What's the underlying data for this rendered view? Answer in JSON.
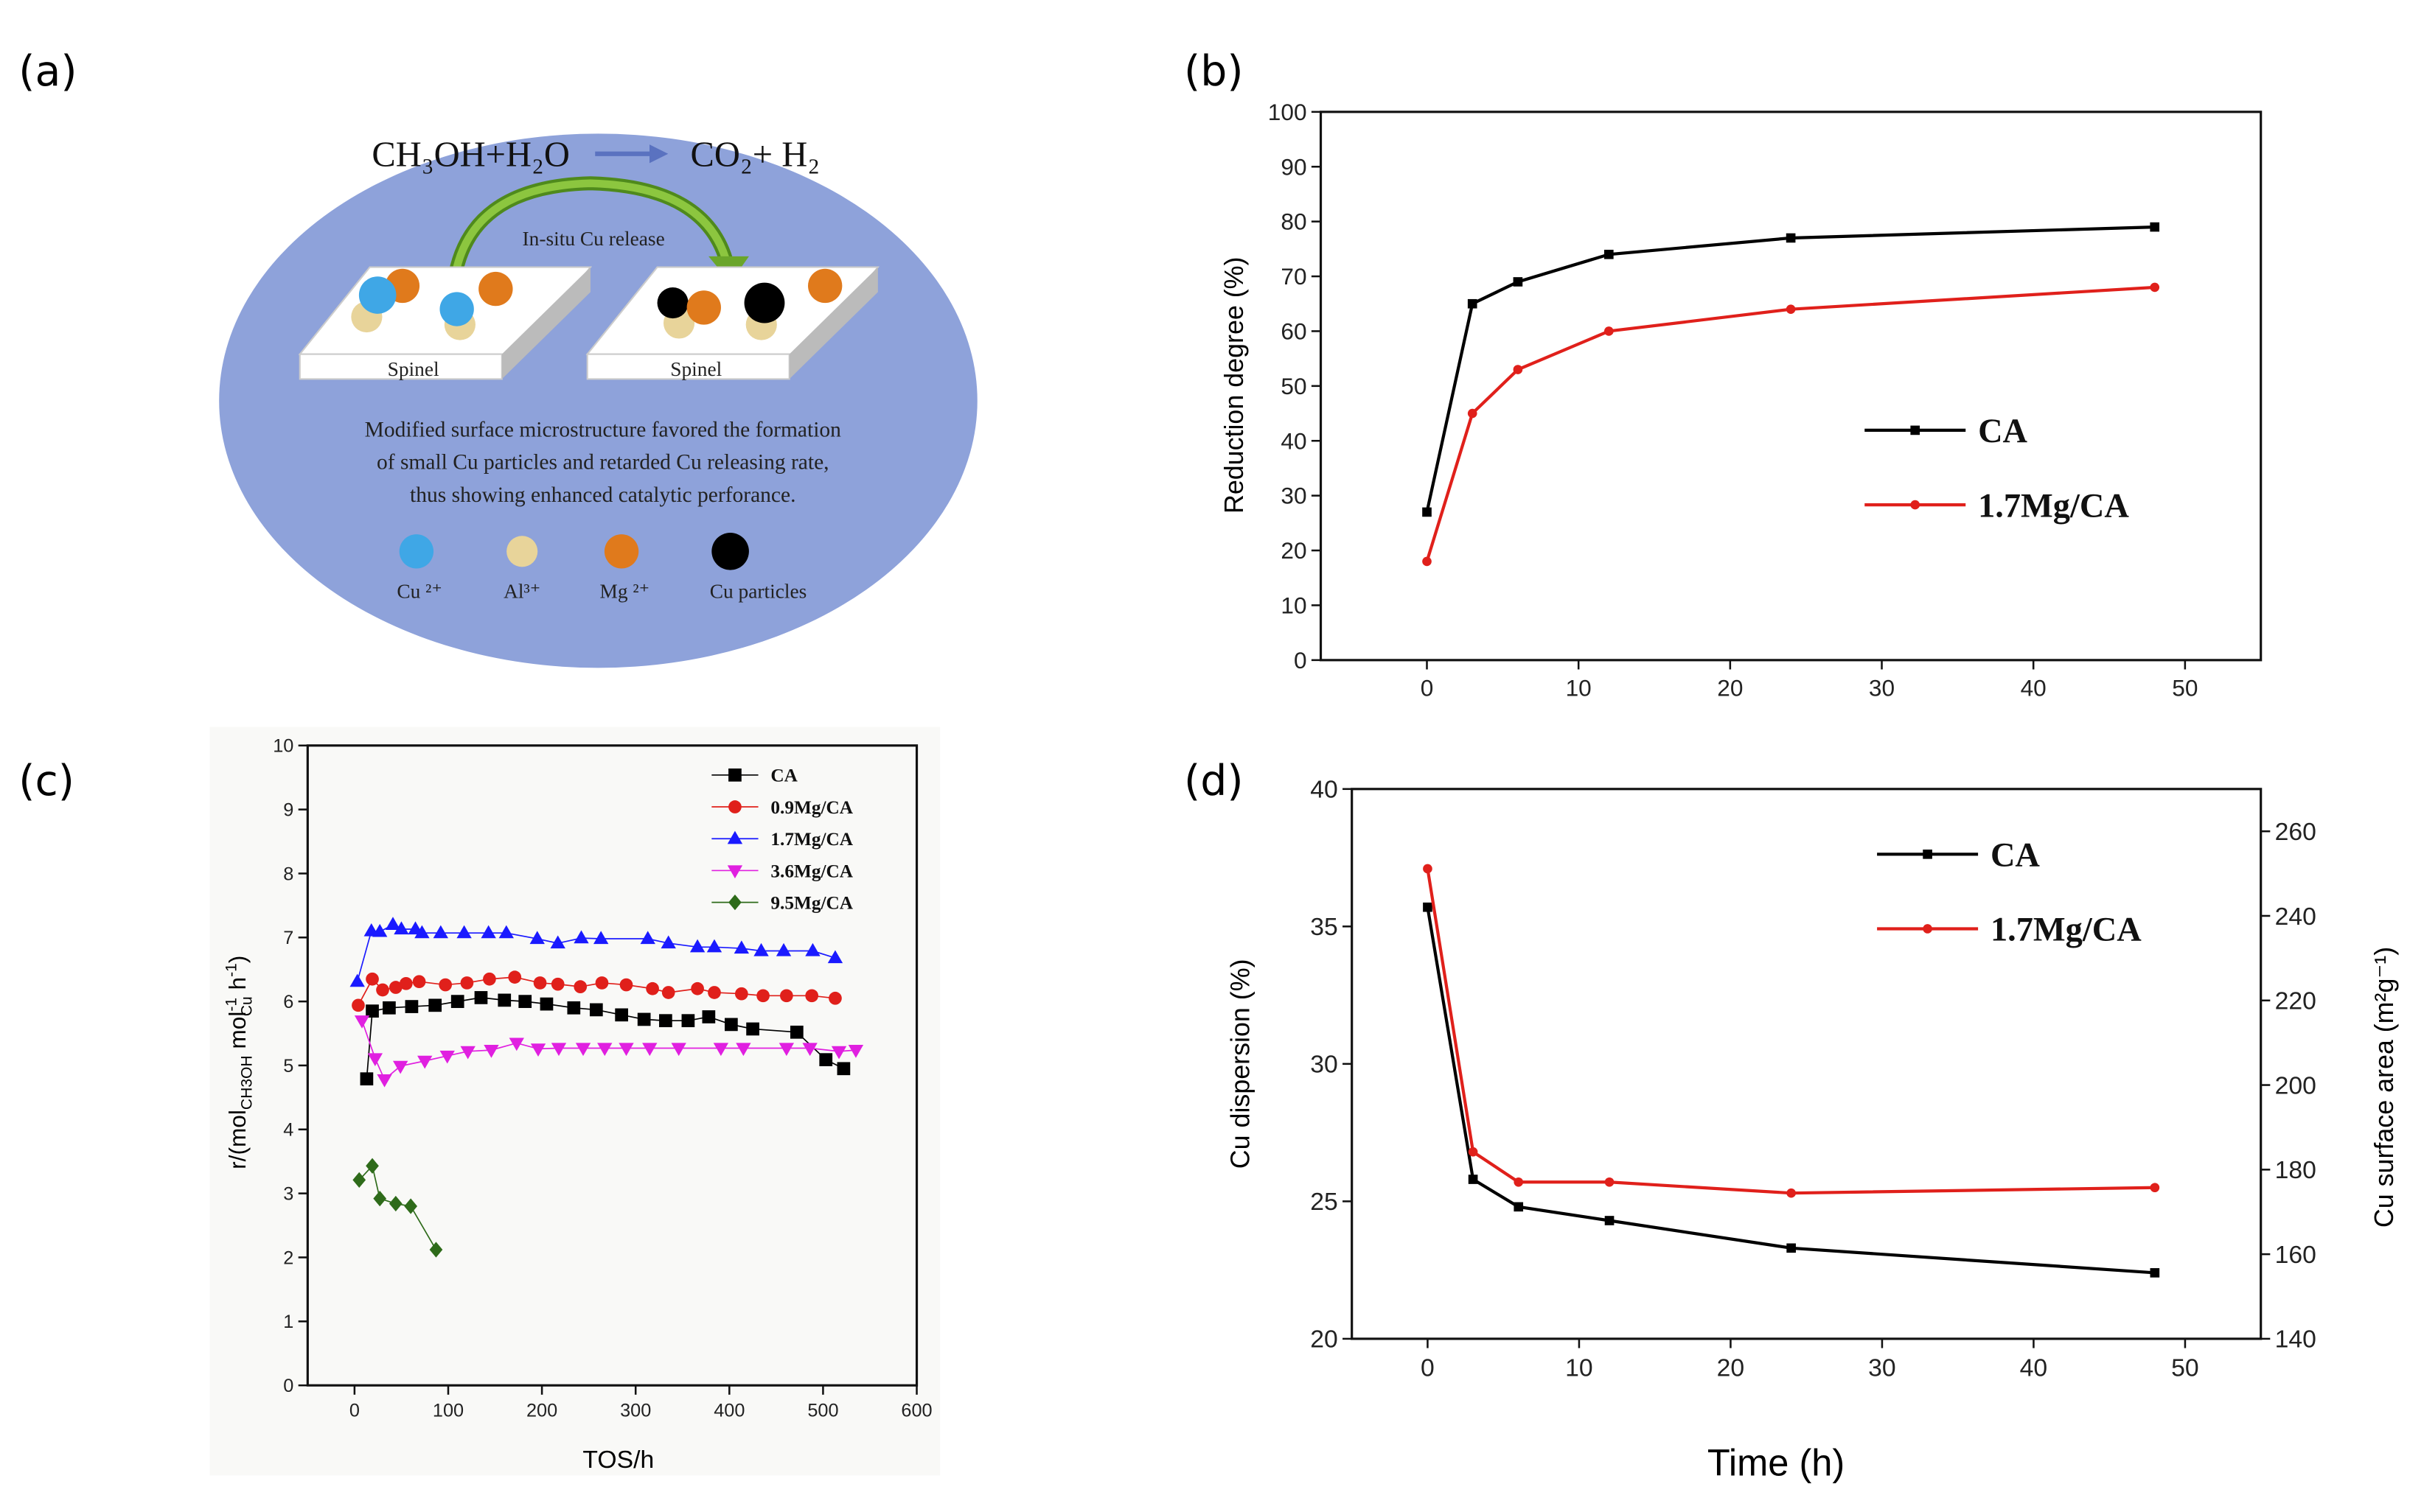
{
  "panels": {
    "a": "(a)",
    "b": "(b)",
    "c": "(c)",
    "d": "(d)"
  },
  "diagram": {
    "equation_left": "CH₃OH+H₂O",
    "equation_right": "CO₂+ H₂",
    "arrow_label": "In-situ Cu release",
    "slab_label_left": "Spinel",
    "slab_label_right": "Spinel",
    "caption": [
      "Modified surface microstructure favored the formation",
      "of small Cu particles and retarded Cu releasing rate,",
      "thus showing enhanced catalytic perforance."
    ],
    "legend": [
      "Cu ²⁺",
      "Al³⁺",
      "Mg ²⁺",
      "Cu particles"
    ],
    "colors": {
      "bg": "#8ea2da",
      "cu_ion": "#3fa7e6",
      "al_ion": "#e8d49a",
      "mg_ion": "#e07a1c",
      "cu_particle": "#000000",
      "arrow": "#6aa52a"
    }
  },
  "chart_data": [
    {
      "type": "line",
      "title": "",
      "xlabel": "",
      "ylabel": "Reduction degree (%)",
      "xlim": [
        -7,
        55
      ],
      "ylim": [
        0,
        100
      ],
      "xticks": [
        0,
        10,
        20,
        30,
        40,
        50
      ],
      "yticks": [
        0,
        10,
        20,
        30,
        40,
        50,
        60,
        70,
        80,
        90,
        100
      ],
      "legend_position": "center-right",
      "series": [
        {
          "name": "CA",
          "color": "#000000",
          "marker": "square",
          "x": [
            0,
            3,
            6,
            12,
            24,
            48
          ],
          "y": [
            27,
            65,
            69,
            74,
            77,
            79
          ]
        },
        {
          "name": "1.7Mg/CA",
          "color": "#e0201b",
          "marker": "circle",
          "x": [
            0,
            3,
            6,
            12,
            24,
            48
          ],
          "y": [
            18,
            45,
            53,
            60,
            64,
            68
          ]
        }
      ]
    },
    {
      "type": "scatter",
      "title": "",
      "xlabel": "TOS/h",
      "ylabel_parts": [
        "r/(mol",
        "CH3OH",
        " mol",
        "-1",
        "Cu",
        " h",
        "-1",
        ")"
      ],
      "xlim": [
        -50,
        600
      ],
      "ylim": [
        0,
        10
      ],
      "xticks": [
        0,
        100,
        200,
        300,
        400,
        500,
        600
      ],
      "yticks": [
        0,
        1,
        2,
        3,
        4,
        5,
        6,
        7,
        8,
        9,
        10
      ],
      "legend_position": "top-right",
      "series": [
        {
          "name": "CA",
          "color": "#000000",
          "marker": "square",
          "x": [
            13,
            19,
            37,
            61,
            86,
            110,
            135,
            160,
            182,
            205,
            234,
            258,
            285,
            309,
            332,
            356,
            378,
            402,
            425,
            472,
            503,
            522
          ],
          "y": [
            4.79,
            5.85,
            5.9,
            5.92,
            5.94,
            6.0,
            6.06,
            6.02,
            6.0,
            5.96,
            5.9,
            5.87,
            5.79,
            5.72,
            5.7,
            5.7,
            5.76,
            5.64,
            5.57,
            5.52,
            5.09,
            4.95
          ]
        },
        {
          "name": "0.9Mg/CA",
          "color": "#e0201b",
          "marker": "circle",
          "x": [
            4,
            19,
            30,
            44,
            55,
            69,
            97,
            120,
            144,
            171,
            198,
            217,
            241,
            264,
            290,
            318,
            335,
            366,
            384,
            413,
            436,
            461,
            488,
            513
          ],
          "y": [
            5.94,
            6.35,
            6.18,
            6.22,
            6.28,
            6.31,
            6.26,
            6.29,
            6.35,
            6.38,
            6.29,
            6.27,
            6.23,
            6.29,
            6.26,
            6.2,
            6.14,
            6.2,
            6.14,
            6.12,
            6.09,
            6.09,
            6.09,
            6.05
          ]
        },
        {
          "name": "1.7Mg/CA",
          "color": "#1a1aff",
          "marker": "triangle",
          "x": [
            3,
            18,
            27,
            41,
            50,
            65,
            72,
            92,
            117,
            143,
            162,
            195,
            217,
            242,
            263,
            313,
            335,
            366,
            384,
            413,
            434,
            458,
            489,
            513
          ],
          "y": [
            6.31,
            7.1,
            7.09,
            7.2,
            7.13,
            7.13,
            7.07,
            7.07,
            7.07,
            7.07,
            7.07,
            6.98,
            6.91,
            6.99,
            6.98,
            6.98,
            6.91,
            6.85,
            6.85,
            6.83,
            6.79,
            6.79,
            6.79,
            6.68
          ]
        },
        {
          "name": "3.6Mg/CA",
          "color": "#e020e0",
          "marker": "triangle-down",
          "x": [
            8,
            22,
            32,
            49,
            75,
            99,
            121,
            146,
            173,
            196,
            218,
            244,
            267,
            290,
            315,
            346,
            391,
            415,
            461,
            486,
            517,
            535
          ],
          "y": [
            5.7,
            5.11,
            4.78,
            4.99,
            5.07,
            5.15,
            5.22,
            5.24,
            5.35,
            5.26,
            5.27,
            5.27,
            5.27,
            5.27,
            5.27,
            5.27,
            5.27,
            5.27,
            5.27,
            5.27,
            5.22,
            5.24
          ]
        },
        {
          "name": "9.5Mg/CA",
          "color": "#2e6b1a",
          "marker": "diamond",
          "x": [
            5,
            19,
            27,
            44,
            60,
            87
          ],
          "y": [
            3.21,
            3.43,
            2.92,
            2.84,
            2.8,
            2.12
          ]
        }
      ]
    },
    {
      "type": "line",
      "title": "",
      "xlabel": "Time (h)",
      "ylabel": "Cu dispersion (%)",
      "ylabel_right": "Cu surface area (m²g⁻¹)",
      "xlim": [
        -5,
        55
      ],
      "ylim": [
        20,
        40
      ],
      "ylim_right": [
        140,
        270
      ],
      "xticks": [
        0,
        10,
        20,
        30,
        40,
        50
      ],
      "yticks": [
        20,
        25,
        30,
        35,
        40
      ],
      "yticks_right": [
        140,
        160,
        180,
        200,
        220,
        240,
        260
      ],
      "legend_position": "top-right",
      "series": [
        {
          "name": "CA",
          "color": "#000000",
          "marker": "square",
          "x": [
            0,
            3,
            6,
            12,
            24,
            48
          ],
          "y": [
            35.7,
            25.8,
            24.8,
            24.3,
            23.3,
            22.4
          ]
        },
        {
          "name": "1.7Mg/CA",
          "color": "#e0201b",
          "marker": "circle",
          "x": [
            0,
            3,
            6,
            12,
            24,
            48
          ],
          "y": [
            37.1,
            26.8,
            25.7,
            25.7,
            25.3,
            25.5
          ]
        }
      ]
    }
  ]
}
